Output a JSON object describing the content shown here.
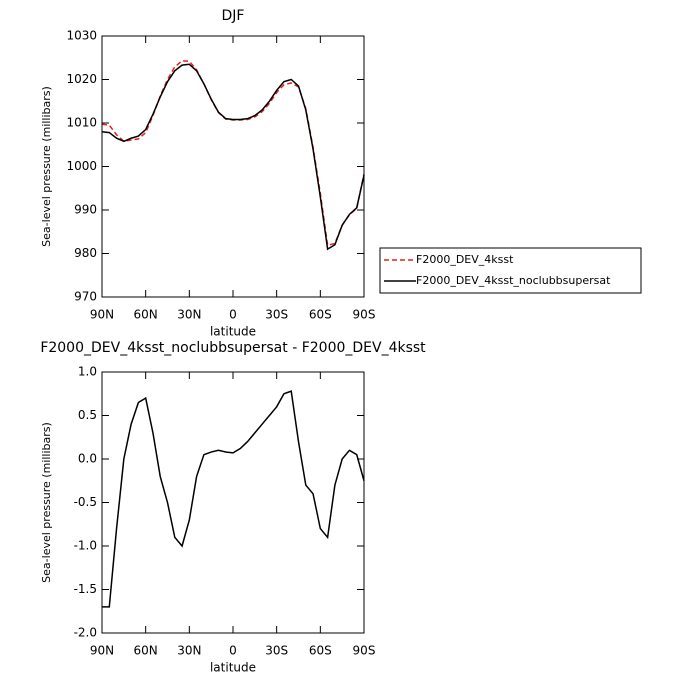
{
  "chart_data": [
    {
      "type": "line",
      "title": "DJF",
      "xlabel": "latitude",
      "ylabel": "Sea-level pressure (millibars)",
      "x": [
        90,
        85,
        80,
        75,
        70,
        65,
        60,
        55,
        50,
        45,
        40,
        35,
        30,
        25,
        20,
        15,
        10,
        5,
        0,
        -5,
        -10,
        -15,
        -20,
        -25,
        -30,
        -35,
        -40,
        -45,
        -50,
        -55,
        -60,
        -65,
        -70,
        -75,
        -80,
        -85,
        -90
      ],
      "series": [
        {
          "name": "F2000_DEV_4ksst",
          "color": "#e8201c",
          "dash": true,
          "values": [
            1009.7,
            1009.5,
            1007.3,
            1005.8,
            1006.1,
            1006.35,
            1007.8,
            1011.7,
            1016.2,
            1020,
            1022.9,
            1024.3,
            1024.2,
            1022.2,
            1019,
            1015.4,
            1012.4,
            1010.9,
            1010.7,
            1010.7,
            1010.8,
            1011.4,
            1012.6,
            1014.5,
            1017,
            1018.8,
            1019.2,
            1018.3,
            1013.3,
            1004.4,
            993.8,
            981.9,
            982.3,
            986.5,
            988.9,
            990.4,
            998.3
          ]
        },
        {
          "name": "F2000_DEV_4ksst_noclubbsupersat",
          "color": "#000000",
          "dash": false,
          "values": [
            1008,
            1007.8,
            1006.5,
            1005.8,
            1006.5,
            1007,
            1008.5,
            1012,
            1016,
            1019.5,
            1022,
            1023.3,
            1023.5,
            1022,
            1019,
            1015.5,
            1012.5,
            1011,
            1010.8,
            1010.8,
            1011,
            1011.7,
            1013,
            1015,
            1017.5,
            1019.5,
            1020,
            1018.5,
            1013,
            1004,
            993,
            981,
            982,
            986.5,
            989,
            990.5,
            998
          ]
        }
      ],
      "xlim": [
        90,
        -90
      ],
      "xticks": [
        {
          "value": 90,
          "label": "90N"
        },
        {
          "value": 60,
          "label": "60N"
        },
        {
          "value": 30,
          "label": "30N"
        },
        0,
        {
          "value": -30,
          "label": "30S"
        },
        {
          "value": -60,
          "label": "60S"
        },
        {
          "value": -90,
          "label": "90S"
        }
      ],
      "ylim": [
        970,
        1030
      ],
      "yticks": [
        970,
        980,
        990,
        1000,
        1010,
        1020,
        1030
      ]
    },
    {
      "type": "line",
      "title": "F2000_DEV_4ksst_noclubbsupersat - F2000_DEV_4ksst",
      "xlabel": "latitude",
      "ylabel": "Sea-level pressure (millibars)",
      "x": [
        90,
        85,
        80,
        75,
        70,
        65,
        60,
        55,
        50,
        45,
        40,
        35,
        30,
        25,
        20,
        15,
        10,
        5,
        0,
        -5,
        -10,
        -15,
        -20,
        -25,
        -30,
        -35,
        -40,
        -45,
        -50,
        -55,
        -60,
        -65,
        -70,
        -75,
        -80,
        -85,
        -90
      ],
      "series": [
        {
          "color": "#000000",
          "dash": false,
          "values": [
            -1.7,
            -1.7,
            -0.8,
            0,
            0.4,
            0.65,
            0.7,
            0.3,
            -0.2,
            -0.5,
            -0.9,
            -1,
            -0.7,
            -0.2,
            0.05,
            0.08,
            0.1,
            0.08,
            0.07,
            0.12,
            0.2,
            0.3,
            0.4,
            0.5,
            0.6,
            0.75,
            0.78,
            0.2,
            -0.3,
            -0.4,
            -0.8,
            -0.9,
            -0.3,
            0,
            0.1,
            0.05,
            -0.25
          ]
        }
      ],
      "xlim": [
        90,
        -90
      ],
      "xticks": [
        {
          "value": 90,
          "label": "90N"
        },
        {
          "value": 60,
          "label": "60N"
        },
        {
          "value": 30,
          "label": "30N"
        },
        0,
        {
          "value": -30,
          "label": "30S"
        },
        {
          "value": -60,
          "label": "60S"
        },
        {
          "value": -90,
          "label": "90S"
        }
      ],
      "ylim": [
        -2,
        1
      ],
      "yticks": [
        {
          "value": -2,
          "label": "-2.0"
        },
        -1.5,
        {
          "value": -1,
          "label": "-1.0"
        },
        -0.5,
        {
          "value": 0,
          "label": "0.0"
        },
        0.5,
        {
          "value": 1,
          "label": "1.0"
        }
      ]
    }
  ]
}
